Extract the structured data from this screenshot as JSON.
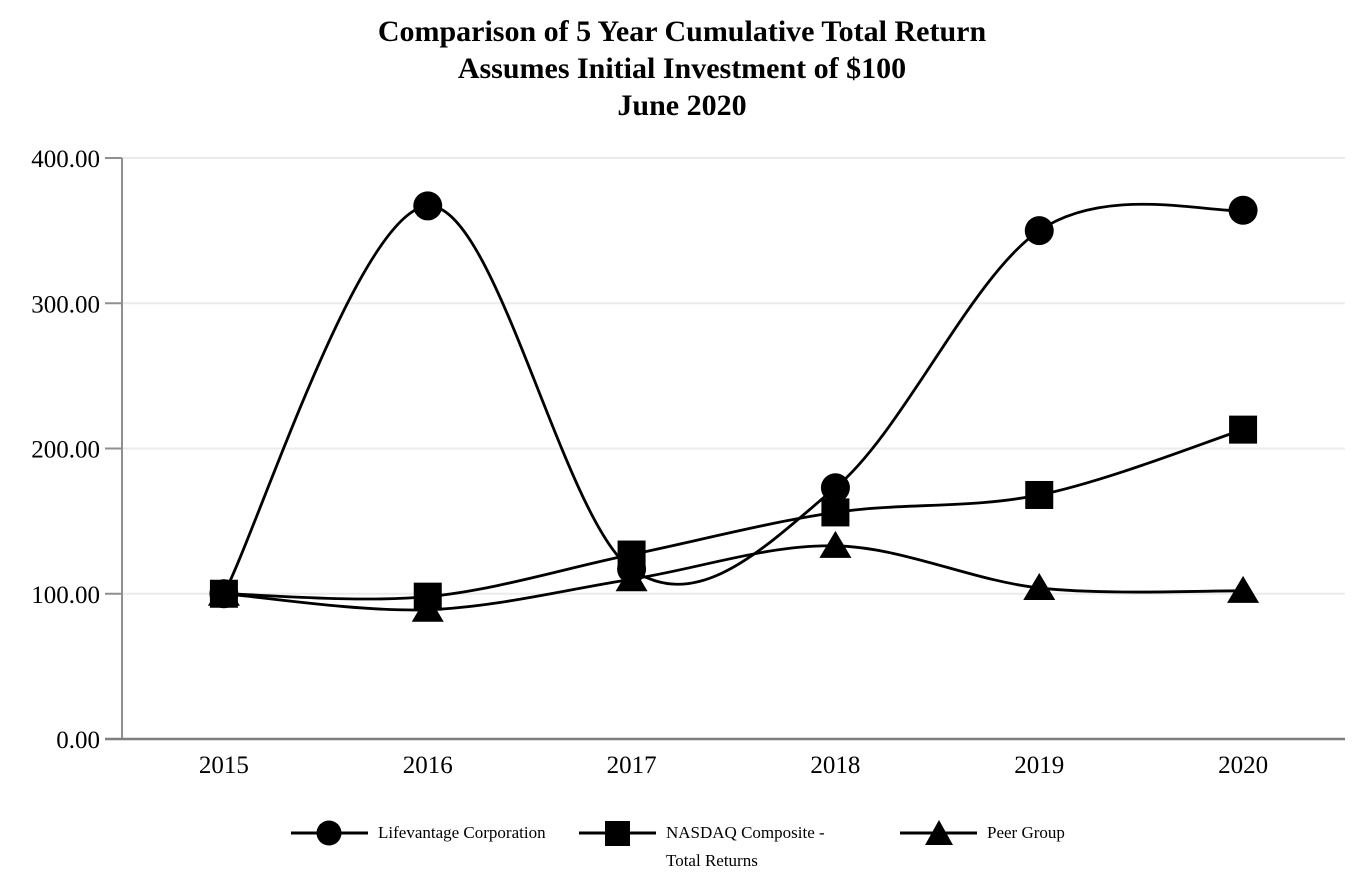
{
  "title": {
    "line1": "Comparison of 5 Year Cumulative Total Return",
    "line2": "Assumes Initial Investment of $100",
    "line3": "June 2020"
  },
  "chart_data": {
    "type": "line",
    "smooth": true,
    "categories": [
      "2015",
      "2016",
      "2017",
      "2018",
      "2019",
      "2020"
    ],
    "series": [
      {
        "name": "Lifevantage Corporation",
        "marker": "circle",
        "values": [
          100,
          367,
          117,
          173,
          350,
          364
        ]
      },
      {
        "name": "NASDAQ Composite - Total Returns",
        "marker": "square",
        "values": [
          100,
          98,
          127,
          156,
          168,
          213
        ]
      },
      {
        "name": "Peer Group",
        "marker": "triangle",
        "values": [
          100,
          89,
          110,
          133,
          104,
          102
        ]
      }
    ],
    "ylim": [
      0,
      400
    ],
    "ytick_values": [
      0,
      100,
      200,
      300,
      400
    ],
    "ytick_labels": [
      "0.00",
      "100.00",
      "200.00",
      "300.00",
      "400.00"
    ],
    "xlabel": "",
    "ylabel": "",
    "grid": "horizontal",
    "legend_position": "bottom",
    "colors": {
      "series_color": "#000000",
      "grid_color": "#ebebeb",
      "axis_color": "#8f8f8f",
      "text_color": "#000000"
    }
  }
}
